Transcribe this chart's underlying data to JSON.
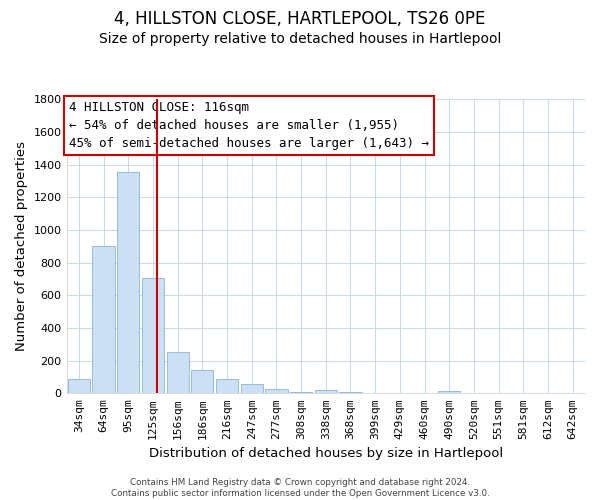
{
  "title": "4, HILLSTON CLOSE, HARTLEPOOL, TS26 0PE",
  "subtitle": "Size of property relative to detached houses in Hartlepool",
  "xlabel": "Distribution of detached houses by size in Hartlepool",
  "ylabel": "Number of detached properties",
  "bar_labels": [
    "34sqm",
    "64sqm",
    "95sqm",
    "125sqm",
    "156sqm",
    "186sqm",
    "216sqm",
    "247sqm",
    "277sqm",
    "308sqm",
    "338sqm",
    "368sqm",
    "399sqm",
    "429sqm",
    "460sqm",
    "490sqm",
    "520sqm",
    "551sqm",
    "581sqm",
    "612sqm",
    "642sqm"
  ],
  "bar_values": [
    90,
    905,
    1355,
    705,
    250,
    145,
    90,
    55,
    25,
    5,
    20,
    10,
    2,
    2,
    2,
    15,
    2,
    2,
    2,
    2,
    2
  ],
  "bar_color": "#cce0f5",
  "bar_edge_color": "#89b4d9",
  "vline_color": "#cc0000",
  "vline_x": 3.18,
  "ylim": [
    0,
    1800
  ],
  "yticks": [
    0,
    200,
    400,
    600,
    800,
    1000,
    1200,
    1400,
    1600,
    1800
  ],
  "ann_line1": "4 HILLSTON CLOSE: 116sqm",
  "ann_line2": "← 54% of detached houses are smaller (1,955)",
  "ann_line3": "45% of semi-detached houses are larger (1,643) →",
  "footer_text": "Contains HM Land Registry data © Crown copyright and database right 2024.\nContains public sector information licensed under the Open Government Licence v3.0.",
  "background_color": "#ffffff",
  "grid_color": "#c8d8ec",
  "title_fontsize": 12,
  "subtitle_fontsize": 10,
  "axis_label_fontsize": 9.5,
  "tick_fontsize": 8,
  "ann_fontsize": 9
}
